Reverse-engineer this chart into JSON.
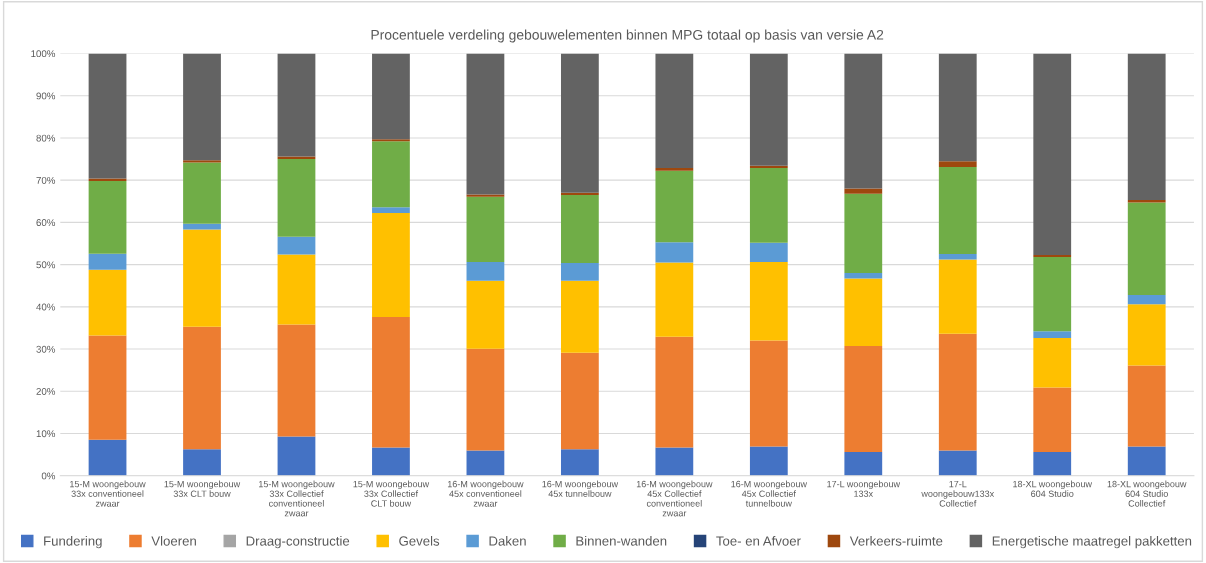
{
  "chart_data": {
    "type": "bar",
    "stacked": true,
    "title": "Procentuele verdeling gebouwelementen binnen MPG totaal op basis van versie A2",
    "categories": [
      "15-M woongebouw 33x conventioneel zwaar",
      "15-M woongebouw 33x CLT bouw",
      "15-M woongebouw 33x Collectief conventioneel zwaar",
      "15-M woongebouw 33x Collectief CLT bouw",
      "16-M woongebouw 45x conventioneel zwaar",
      "16-M woongebouw 45x tunnelbouw",
      "16-M woongebouw 45x Collectief conventioneel zwaar",
      "16-M woongebouw 45x Collectief tunnelbouw",
      "17-L woongebouw 133x",
      "17-L woongebouw133x Collectief",
      "18-XL woongebouw 604 Studio",
      "18-XL woongebouw 604 Studio Collectief"
    ],
    "series": [
      {
        "name": "Fundering",
        "color": "#4472c4",
        "values": [
          8.5,
          6.3,
          9.3,
          6.7,
          6.0,
          6.3,
          6.7,
          6.9,
          5.6,
          6.0,
          5.6,
          6.9
        ]
      },
      {
        "name": "Vloeren",
        "color": "#ed7d31",
        "values": [
          24.7,
          29.0,
          26.5,
          30.9,
          24.1,
          22.8,
          26.2,
          25.1,
          25.1,
          27.6,
          15.3,
          19.2
        ]
      },
      {
        "name": "Draag-constructie",
        "color": "#a5a5a5",
        "values": [
          0,
          0,
          0,
          0,
          0,
          0,
          0,
          0,
          0,
          0,
          0,
          0
        ]
      },
      {
        "name": "Gevels",
        "color": "#ffc000",
        "values": [
          15.6,
          23.0,
          16.6,
          24.6,
          16.1,
          17.1,
          17.6,
          18.6,
          16.0,
          17.6,
          11.7,
          14.5
        ]
      },
      {
        "name": "Daken",
        "color": "#5b9bd5",
        "values": [
          3.8,
          1.4,
          4.2,
          1.4,
          4.4,
          4.2,
          4.8,
          4.6,
          1.3,
          1.3,
          1.6,
          2.2
        ]
      },
      {
        "name": "Binnen-wanden",
        "color": "#70ad47",
        "values": [
          17.2,
          14.5,
          18.4,
          15.6,
          15.5,
          16.1,
          16.9,
          17.7,
          18.8,
          20.6,
          17.6,
          21.9
        ]
      },
      {
        "name": "Toe- en Afvoer",
        "color": "#264478",
        "values": [
          0,
          0,
          0,
          0,
          0,
          0,
          0,
          0,
          0,
          0,
          0,
          0
        ]
      },
      {
        "name": "Verkeers-ruimte",
        "color": "#9e480e",
        "values": [
          0.6,
          0.5,
          0.6,
          0.5,
          0.5,
          0.5,
          0.7,
          0.5,
          1.2,
          1.4,
          0.5,
          0.6
        ]
      },
      {
        "name": "Energetische maatregel pakketten",
        "color": "#636363",
        "values": [
          29.6,
          25.3,
          24.4,
          20.3,
          33.4,
          33.0,
          27.1,
          26.6,
          32.0,
          25.5,
          47.7,
          34.7
        ]
      }
    ],
    "ylim": [
      0,
      100
    ],
    "yticks": [
      {
        "value": 0,
        "label": "0%"
      },
      {
        "value": 10,
        "label": "10%"
      },
      {
        "value": 20,
        "label": "20%"
      },
      {
        "value": 30,
        "label": "30%"
      },
      {
        "value": 40,
        "label": "40%"
      },
      {
        "value": 50,
        "label": "50%"
      },
      {
        "value": 60,
        "label": "60%"
      },
      {
        "value": 70,
        "label": "70%"
      },
      {
        "value": 80,
        "label": "80%"
      },
      {
        "value": 90,
        "label": "90%"
      },
      {
        "value": 100,
        "label": "100%"
      }
    ],
    "grid": "y",
    "legend": "bottom"
  }
}
